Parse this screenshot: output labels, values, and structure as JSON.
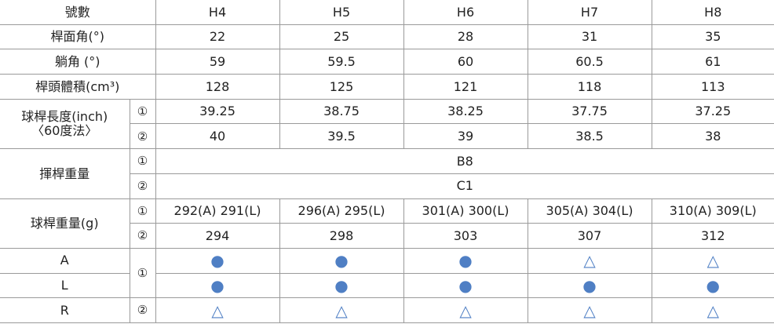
{
  "table": {
    "header": [
      "號數",
      "H4",
      "H5",
      "H6",
      "H7",
      "H8"
    ],
    "rows": [
      [
        "桿面角(°)",
        22,
        25,
        28,
        31,
        35
      ],
      [
        "躺角 (°)",
        59,
        59.5,
        60,
        60.5,
        61
      ],
      [
        "桿頭體積(cm³)",
        128,
        125,
        121,
        118,
        113
      ],
      [
        [
          "球桿長度(inch)",
          "〈60度法〉"
        ],
        "①",
        39.25,
        38.75,
        38.25,
        37.75,
        37.25
      ],
      [
        "②",
        40,
        39.5,
        39,
        38.5,
        38
      ],
      [
        "揮桿重量",
        "①",
        "B8"
      ],
      [
        "②",
        "C1"
      ],
      [
        "球桿重量(g)",
        "①",
        "292(A) 291(L)",
        "296(A) 295(L)",
        "301(A) 300(L)",
        "305(A) 304(L)",
        "310(A) 309(L)"
      ],
      [
        "②",
        294,
        298,
        303,
        307,
        312
      ],
      [
        "A",
        "①",
        "●",
        "●",
        "●",
        "△",
        "△"
      ],
      [
        "L",
        "●",
        "●",
        "●",
        "●",
        "●"
      ],
      [
        "R",
        "②",
        "△",
        "△",
        "△",
        "△",
        "△"
      ]
    ]
  }
}
